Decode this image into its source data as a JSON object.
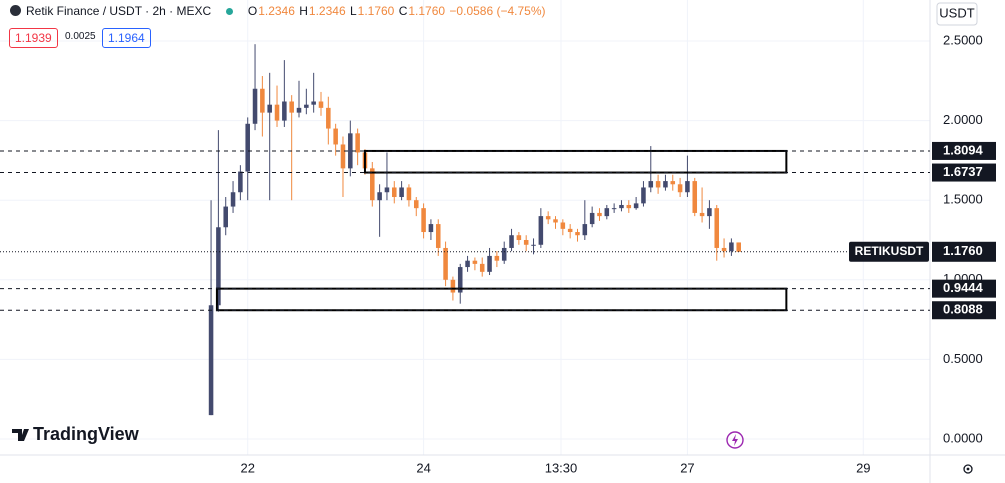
{
  "chart_data": {
    "type": "candlestick",
    "header": {
      "symbol": "Retik Finance / USDT · 2h · MEXC",
      "ohlc": [
        {
          "label": "O",
          "value": "1.2346"
        },
        {
          "label": "H",
          "value": "1.2346"
        },
        {
          "label": "L",
          "value": "1.1760"
        },
        {
          "label": "C",
          "value": "1.1760"
        }
      ],
      "change": "−0.0586 (−4.75%)",
      "sell": "1.1939",
      "spread": "0.0025",
      "buy": "1.1964"
    },
    "currency": "USDT",
    "watermark": "TradingView",
    "up_color": "#434a6e",
    "down_color": "#f0883e",
    "x": [
      0,
      1,
      2,
      3,
      4,
      5,
      6,
      7,
      8,
      9,
      10,
      11,
      12,
      13,
      14,
      15,
      16,
      17,
      18,
      19,
      20,
      21,
      22,
      23,
      24,
      25,
      26,
      27,
      28,
      29,
      30,
      31,
      32,
      33,
      34,
      35,
      36,
      37,
      38,
      39,
      40,
      41,
      42,
      43,
      44,
      45,
      46,
      47,
      48,
      49,
      50,
      51,
      52,
      53,
      54,
      55,
      56,
      57,
      58,
      59,
      60,
      61,
      62,
      63,
      64,
      65,
      66,
      67,
      68,
      69,
      70,
      71,
      72
    ],
    "open": [
      0.15,
      0.84,
      1.33,
      1.46,
      1.55,
      1.68,
      1.98,
      2.2,
      2.05,
      2.1,
      2.0,
      2.12,
      2.05,
      2.08,
      2.1,
      2.12,
      2.08,
      1.95,
      1.85,
      1.7,
      1.92,
      1.8,
      1.7,
      1.5,
      1.55,
      1.58,
      1.52,
      1.58,
      1.5,
      1.45,
      1.3,
      1.35,
      1.2,
      1.0,
      0.92,
      1.08,
      1.12,
      1.1,
      1.05,
      1.15,
      1.12,
      1.2,
      1.28,
      1.25,
      1.22,
      1.22,
      1.4,
      1.38,
      1.36,
      1.32,
      1.3,
      1.28,
      1.35,
      1.42,
      1.4,
      1.45,
      1.45,
      1.47,
      1.45,
      1.48,
      1.58,
      1.62,
      1.58,
      1.62,
      1.6,
      1.55,
      1.62,
      1.42,
      1.4,
      1.45,
      1.2,
      1.18,
      1.2346
    ],
    "high": [
      1.5,
      1.94,
      1.52,
      1.62,
      1.72,
      2.02,
      2.48,
      2.28,
      2.3,
      2.22,
      2.38,
      2.16,
      2.25,
      2.2,
      2.3,
      2.18,
      2.15,
      1.98,
      1.9,
      2.0,
      1.95,
      1.82,
      1.74,
      1.6,
      1.8,
      1.62,
      1.62,
      1.6,
      1.52,
      1.48,
      1.38,
      1.38,
      1.24,
      1.02,
      1.1,
      1.15,
      1.14,
      1.14,
      1.2,
      1.18,
      1.24,
      1.32,
      1.3,
      1.28,
      1.26,
      1.45,
      1.43,
      1.4,
      1.38,
      1.35,
      1.32,
      1.5,
      1.46,
      1.45,
      1.47,
      1.48,
      1.5,
      1.5,
      1.52,
      1.62,
      1.84,
      1.66,
      1.66,
      1.66,
      1.64,
      1.78,
      1.64,
      1.58,
      1.5,
      1.47,
      1.26,
      1.26,
      1.2346
    ],
    "low": [
      0.15,
      0.8,
      1.28,
      1.42,
      1.5,
      1.5,
      1.94,
      1.9,
      1.5,
      1.96,
      1.96,
      1.5,
      2.02,
      2.04,
      2.05,
      2.03,
      1.85,
      1.78,
      1.52,
      1.65,
      1.72,
      1.66,
      1.46,
      1.27,
      1.5,
      1.48,
      1.5,
      1.46,
      1.4,
      1.26,
      1.25,
      1.15,
      0.96,
      0.87,
      0.85,
      1.05,
      1.06,
      1.02,
      1.03,
      1.08,
      1.1,
      1.18,
      1.22,
      1.18,
      1.16,
      1.2,
      1.35,
      1.32,
      1.28,
      1.26,
      1.24,
      1.25,
      1.33,
      1.37,
      1.38,
      1.42,
      1.43,
      1.42,
      1.44,
      1.46,
      1.55,
      1.54,
      1.56,
      1.56,
      1.52,
      1.52,
      1.4,
      1.36,
      1.32,
      1.12,
      1.14,
      1.15,
      1.176
    ],
    "close": [
      0.84,
      1.33,
      1.46,
      1.55,
      1.68,
      1.98,
      2.2,
      2.05,
      2.1,
      2.0,
      2.12,
      2.05,
      2.08,
      2.1,
      2.12,
      2.08,
      1.95,
      1.85,
      1.7,
      1.92,
      1.8,
      1.7,
      1.5,
      1.55,
      1.58,
      1.52,
      1.58,
      1.5,
      1.45,
      1.3,
      1.35,
      1.2,
      1.0,
      0.92,
      1.08,
      1.12,
      1.1,
      1.05,
      1.15,
      1.12,
      1.2,
      1.28,
      1.25,
      1.22,
      1.22,
      1.4,
      1.38,
      1.36,
      1.32,
      1.3,
      1.28,
      1.35,
      1.42,
      1.4,
      1.45,
      1.45,
      1.47,
      1.45,
      1.48,
      1.58,
      1.62,
      1.58,
      1.62,
      1.6,
      1.55,
      1.62,
      1.42,
      1.4,
      1.45,
      1.2,
      1.18,
      1.2346,
      1.176
    ],
    "xlim": [
      -28.8,
      98.1
    ],
    "xticks": [
      {
        "value": 5,
        "label": "22"
      },
      {
        "value": 29,
        "label": "24"
      },
      {
        "value": 47.75,
        "label": "13:30"
      },
      {
        "value": 65,
        "label": "27"
      },
      {
        "value": 89,
        "label": "29"
      }
    ],
    "ylim": [
      -0.1005,
      2.7575
    ],
    "yticks": [
      {
        "value": 0,
        "label": "0.0000"
      },
      {
        "value": 0.5,
        "label": "0.5000"
      },
      {
        "value": 1,
        "label": "1.0000"
      },
      {
        "value": 1.5,
        "label": "1.5000"
      },
      {
        "value": 2,
        "label": "2.0000"
      },
      {
        "value": 2.5,
        "label": "2.5000"
      }
    ],
    "grid": true,
    "zones": [
      {
        "x": [
          21,
          78.5
        ],
        "range": [
          {
            "value": 1.6737,
            "label": "1.6737"
          },
          {
            "value": 1.8094,
            "label": "1.8094"
          }
        ]
      },
      {
        "x": [
          0.8,
          78.5
        ],
        "range": [
          {
            "value": 0.8088,
            "label": "0.8088"
          },
          {
            "value": 0.9444,
            "label": "0.9444"
          }
        ]
      }
    ],
    "last_price": {
      "name": "RETIKUSDT",
      "value": 1.176,
      "label": "1.1760"
    }
  }
}
